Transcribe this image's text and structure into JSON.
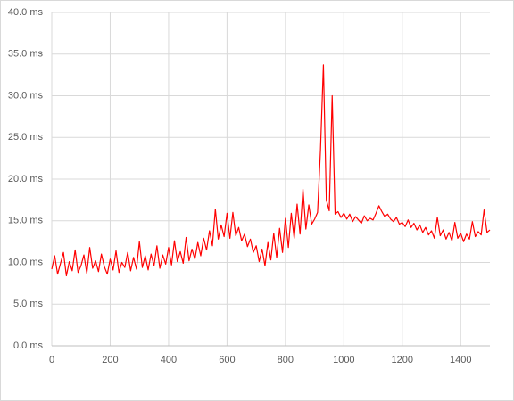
{
  "chart_data": {
    "type": "line",
    "x": [
      0,
      10,
      20,
      30,
      40,
      50,
      60,
      70,
      80,
      90,
      100,
      110,
      120,
      130,
      140,
      150,
      160,
      170,
      180,
      190,
      200,
      210,
      220,
      230,
      240,
      250,
      260,
      270,
      280,
      290,
      300,
      310,
      320,
      330,
      340,
      350,
      360,
      370,
      380,
      390,
      400,
      410,
      420,
      430,
      440,
      450,
      460,
      470,
      480,
      490,
      500,
      510,
      520,
      530,
      540,
      550,
      560,
      570,
      580,
      590,
      600,
      610,
      620,
      630,
      640,
      650,
      660,
      670,
      680,
      690,
      700,
      710,
      720,
      730,
      740,
      750,
      760,
      770,
      780,
      790,
      800,
      810,
      820,
      830,
      840,
      850,
      860,
      870,
      880,
      890,
      900,
      910,
      920,
      930,
      940,
      950,
      960,
      970,
      980,
      990,
      1000,
      1010,
      1020,
      1030,
      1040,
      1050,
      1060,
      1070,
      1080,
      1090,
      1100,
      1110,
      1120,
      1130,
      1140,
      1150,
      1160,
      1170,
      1180,
      1190,
      1200,
      1210,
      1220,
      1230,
      1240,
      1250,
      1260,
      1270,
      1280,
      1290,
      1300,
      1310,
      1320,
      1330,
      1340,
      1350,
      1360,
      1370,
      1380,
      1390,
      1400,
      1410,
      1420,
      1430,
      1440,
      1450,
      1460,
      1470,
      1480,
      1490,
      1500
    ],
    "series": [
      {
        "color": "#ff0000",
        "values": [
          9.2,
          10.8,
          8.6,
          9.9,
          11.2,
          8.4,
          10.1,
          9.0,
          11.5,
          8.8,
          9.6,
          10.9,
          8.7,
          11.8,
          9.3,
          10.2,
          8.9,
          11.0,
          9.5,
          8.6,
          10.4,
          9.1,
          11.4,
          8.8,
          10.0,
          9.4,
          11.2,
          9.0,
          10.6,
          9.2,
          12.5,
          9.4,
          10.8,
          9.1,
          11.0,
          9.6,
          12.0,
          9.3,
          10.9,
          9.8,
          11.8,
          9.7,
          12.6,
          10.1,
          11.3,
          9.9,
          13.0,
          10.2,
          11.6,
          10.4,
          12.4,
          10.8,
          12.9,
          11.5,
          13.8,
          12.0,
          16.4,
          12.8,
          14.5,
          13.1,
          15.9,
          12.9,
          16.0,
          13.2,
          14.2,
          12.6,
          13.4,
          11.9,
          12.8,
          11.2,
          12.0,
          10.1,
          11.6,
          9.6,
          12.4,
          10.3,
          13.5,
          10.6,
          14.1,
          11.2,
          15.3,
          11.8,
          15.9,
          12.9,
          17.0,
          13.4,
          18.8,
          14.0,
          16.9,
          14.6,
          15.2,
          16.0,
          23.5,
          33.7,
          17.5,
          16.2,
          30.0,
          15.8,
          16.1,
          15.4,
          15.9,
          15.2,
          15.8,
          14.9,
          15.5,
          15.1,
          14.7,
          15.6,
          15.0,
          15.3,
          15.1,
          15.9,
          16.8,
          16.1,
          15.5,
          15.8,
          15.2,
          14.9,
          15.4,
          14.6,
          14.8,
          14.3,
          15.1,
          14.2,
          14.7,
          13.9,
          14.5,
          13.6,
          14.2,
          13.3,
          13.8,
          12.9,
          15.4,
          13.2,
          13.9,
          12.8,
          13.6,
          12.6,
          14.8,
          12.9,
          13.5,
          12.5,
          13.4,
          12.8,
          14.9,
          13.1,
          13.7,
          13.3,
          16.3,
          13.6,
          13.9
        ]
      }
    ],
    "xlim": [
      0,
      1500
    ],
    "xticks": [
      0,
      200,
      400,
      600,
      800,
      1000,
      1200,
      1400
    ],
    "ylim": [
      0,
      40
    ],
    "yticks": [
      {
        "value": 0,
        "label": "0.0 ms"
      },
      {
        "value": 5,
        "label": "5.0 ms"
      },
      {
        "value": 10,
        "label": "10.0 ms"
      },
      {
        "value": 15,
        "label": "15.0 ms"
      },
      {
        "value": 20,
        "label": "20.0 ms"
      },
      {
        "value": 25,
        "label": "25.0 ms"
      },
      {
        "value": 30,
        "label": "30.0 ms"
      },
      {
        "value": 35,
        "label": "35.0 ms"
      },
      {
        "value": 40,
        "label": "40.0 ms"
      }
    ],
    "grid": true
  }
}
